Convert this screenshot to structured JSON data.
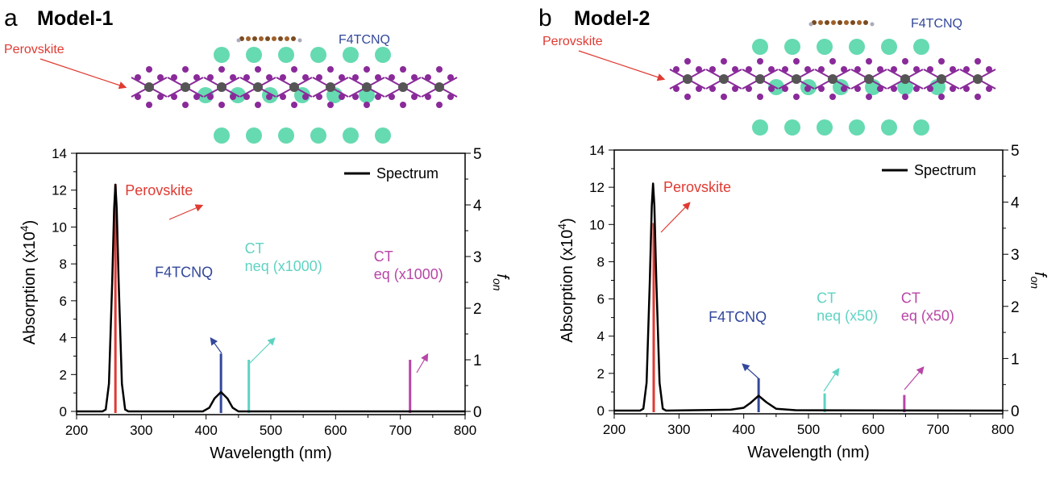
{
  "colors": {
    "spectrum": "#000000",
    "perovskite": "#e03a32",
    "f4tcnq": "#33489a",
    "ct_neq": "#5fd3c2",
    "ct_eq": "#b846a6",
    "cl_atom": "#55d6a8",
    "i_atom": "#8a2a9a",
    "pb_atom": "#555555"
  },
  "chart_data": [
    {
      "type": "line",
      "panel_letter": "a",
      "title": "Model-1",
      "structure_labels": {
        "molecule": "F4TCNQ",
        "slab": "Perovskite"
      },
      "xlabel": "Wavelength (nm)",
      "ylabel": "Absorption (x10",
      "ylabel_exp": "4",
      "ylabel_close": ")",
      "y2label": "f",
      "y2label_sub": "on",
      "xlim": [
        200,
        800
      ],
      "ylim": [
        0,
        14
      ],
      "y2lim": [
        0,
        5
      ],
      "xticks": [
        "200",
        "300",
        "400",
        "500",
        "600",
        "700",
        "800"
      ],
      "yticks": [
        "0",
        "2",
        "4",
        "6",
        "8",
        "10",
        "12",
        "14"
      ],
      "y2ticks": [
        "0",
        "1",
        "2",
        "3",
        "4",
        "5"
      ],
      "legend": {
        "label": "Spectrum",
        "position": "top-right"
      },
      "spectrum": {
        "name": "Spectrum",
        "x": [
          200,
          240,
          245,
          250,
          255,
          258,
          260,
          262,
          265,
          270,
          275,
          280,
          395,
          405,
          413,
          423,
          433,
          441,
          450,
          800
        ],
        "y": [
          0,
          0,
          0.1,
          1.5,
          7,
          11,
          12.3,
          11,
          7,
          1.5,
          0.1,
          0,
          0,
          0.2,
          0.7,
          1.05,
          0.7,
          0.2,
          0,
          0
        ]
      },
      "sticks": [
        {
          "label": "Perovskite",
          "x": 260,
          "f": 4.4,
          "color_key": "perovskite"
        },
        {
          "label": "F4TCNQ",
          "x": 423,
          "f": 1.12,
          "color_key": "f4tcnq"
        },
        {
          "label": "CT",
          "label2": "neq (x1000)",
          "x": 466,
          "f": 1.0,
          "color_key": "ct_neq"
        },
        {
          "label": "CT",
          "label2": "eq (x1000)",
          "x": 715,
          "f": 1.0,
          "color_key": "ct_eq"
        }
      ]
    },
    {
      "type": "line",
      "panel_letter": "b",
      "title": "Model-2",
      "structure_labels": {
        "molecule": "F4TCNQ",
        "slab": "Perovskite"
      },
      "xlabel": "Wavelength (nm)",
      "ylabel": "Absorption (x10",
      "ylabel_exp": "4",
      "ylabel_close": ")",
      "y2label": "f",
      "y2label_sub": "on",
      "xlim": [
        200,
        800
      ],
      "ylim": [
        0,
        14
      ],
      "y2lim": [
        0,
        5
      ],
      "xticks": [
        "200",
        "300",
        "400",
        "500",
        "600",
        "700",
        "800"
      ],
      "yticks": [
        "0",
        "2",
        "4",
        "6",
        "8",
        "10",
        "12",
        "14"
      ],
      "y2ticks": [
        "0",
        "1",
        "2",
        "3",
        "4",
        "5"
      ],
      "legend": {
        "label": "Spectrum",
        "position": "top-right"
      },
      "spectrum": {
        "name": "Spectrum",
        "x": [
          200,
          240,
          245,
          250,
          255,
          258,
          260,
          262,
          265,
          270,
          275,
          280,
          380,
          400,
          410,
          423,
          435,
          450,
          480,
          800
        ],
        "y": [
          0,
          0,
          0.1,
          1.5,
          7,
          11,
          12.2,
          11,
          7,
          1.5,
          0.1,
          0,
          0.05,
          0.15,
          0.4,
          0.8,
          0.45,
          0.1,
          0.02,
          0
        ]
      },
      "sticks": [
        {
          "label": "Perovskite",
          "x": 261,
          "f": 3.6,
          "color_key": "perovskite"
        },
        {
          "label": "F4TCNQ",
          "x": 423,
          "f": 0.62,
          "color_key": "f4tcnq"
        },
        {
          "label": "CT",
          "label2": "neq (x50)",
          "x": 525,
          "f": 0.33,
          "color_key": "ct_neq"
        },
        {
          "label": "CT",
          "label2": "eq (x50)",
          "x": 648,
          "f": 0.3,
          "color_key": "ct_eq"
        }
      ]
    }
  ]
}
